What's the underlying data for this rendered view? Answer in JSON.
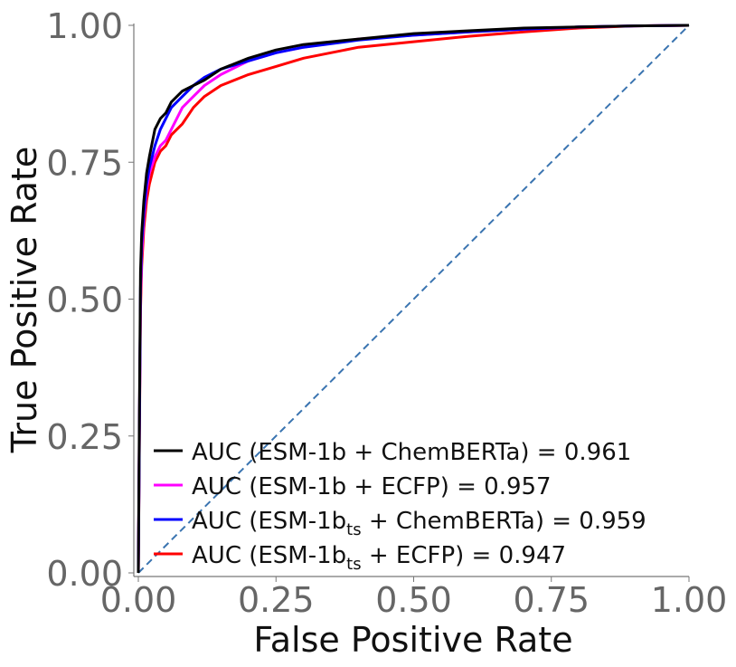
{
  "chart_data": {
    "type": "line",
    "xlabel": "False Positive Rate",
    "ylabel": "True Positive Rate",
    "xlim": [
      0,
      1
    ],
    "ylim": [
      0,
      1
    ],
    "x_ticks": [
      "0.00",
      "0.25",
      "0.50",
      "0.75",
      "1.00"
    ],
    "y_ticks": [
      "0.00",
      "0.25",
      "0.50",
      "0.75",
      "1.00"
    ],
    "grid": false,
    "legend_placement": "lower-right",
    "series": [
      {
        "name": "AUC (ESM-1b + ChemBERTa) = 0.961",
        "color": "#000000",
        "x": [
          0,
          0.002,
          0.004,
          0.006,
          0.01,
          0.015,
          0.02,
          0.03,
          0.04,
          0.05,
          0.06,
          0.08,
          0.1,
          0.12,
          0.15,
          0.2,
          0.25,
          0.3,
          0.4,
          0.5,
          0.6,
          0.7,
          0.8,
          0.9,
          1.0
        ],
        "y": [
          0,
          0.3,
          0.55,
          0.62,
          0.68,
          0.73,
          0.76,
          0.81,
          0.83,
          0.84,
          0.86,
          0.88,
          0.89,
          0.9,
          0.92,
          0.94,
          0.955,
          0.965,
          0.975,
          0.985,
          0.99,
          0.995,
          0.997,
          0.999,
          1.0
        ]
      },
      {
        "name": "AUC (ESM-1b + ECFP) = 0.957",
        "color": "#ff00ff",
        "x": [
          0,
          0.002,
          0.004,
          0.006,
          0.01,
          0.015,
          0.02,
          0.03,
          0.04,
          0.05,
          0.06,
          0.08,
          0.1,
          0.12,
          0.15,
          0.2,
          0.25,
          0.3,
          0.4,
          0.5,
          0.6,
          0.7,
          0.8,
          0.9,
          1.0
        ],
        "y": [
          0,
          0.28,
          0.5,
          0.58,
          0.65,
          0.7,
          0.73,
          0.76,
          0.78,
          0.79,
          0.81,
          0.85,
          0.87,
          0.89,
          0.91,
          0.935,
          0.95,
          0.96,
          0.975,
          0.982,
          0.988,
          0.993,
          0.997,
          0.999,
          1.0
        ]
      },
      {
        "name": "AUC (ESM-1b<sub>ts</sub> + ChemBERTa) = 0.959",
        "label_parts": [
          "AUC (ESM-1b",
          "ts",
          " + ChemBERTa) = 0.959"
        ],
        "color": "#0000ff",
        "x": [
          0,
          0.002,
          0.004,
          0.006,
          0.01,
          0.015,
          0.02,
          0.03,
          0.04,
          0.05,
          0.06,
          0.08,
          0.1,
          0.12,
          0.15,
          0.2,
          0.25,
          0.3,
          0.4,
          0.5,
          0.6,
          0.7,
          0.8,
          0.9,
          1.0
        ],
        "y": [
          0,
          0.26,
          0.52,
          0.6,
          0.66,
          0.71,
          0.74,
          0.78,
          0.81,
          0.83,
          0.85,
          0.87,
          0.89,
          0.905,
          0.92,
          0.935,
          0.95,
          0.96,
          0.973,
          0.982,
          0.988,
          0.993,
          0.997,
          0.999,
          1.0
        ]
      },
      {
        "name": "AUC (ESM-1b<sub>ts</sub> + ECFP) = 0.947",
        "label_parts": [
          "AUC (ESM-1b",
          "ts",
          " + ECFP) = 0.947"
        ],
        "color": "#ff0000",
        "x": [
          0,
          0.002,
          0.004,
          0.006,
          0.01,
          0.015,
          0.02,
          0.03,
          0.04,
          0.05,
          0.06,
          0.08,
          0.1,
          0.12,
          0.15,
          0.2,
          0.25,
          0.3,
          0.4,
          0.5,
          0.6,
          0.7,
          0.8,
          0.9,
          1.0
        ],
        "y": [
          0,
          0.25,
          0.48,
          0.56,
          0.63,
          0.68,
          0.71,
          0.75,
          0.77,
          0.78,
          0.8,
          0.82,
          0.85,
          0.87,
          0.89,
          0.91,
          0.925,
          0.94,
          0.96,
          0.97,
          0.98,
          0.988,
          0.995,
          0.999,
          1.0
        ]
      }
    ],
    "reference_line": {
      "x": [
        0,
        1
      ],
      "y": [
        0,
        1
      ],
      "color": "#3a74b0",
      "style": "dashed"
    }
  }
}
